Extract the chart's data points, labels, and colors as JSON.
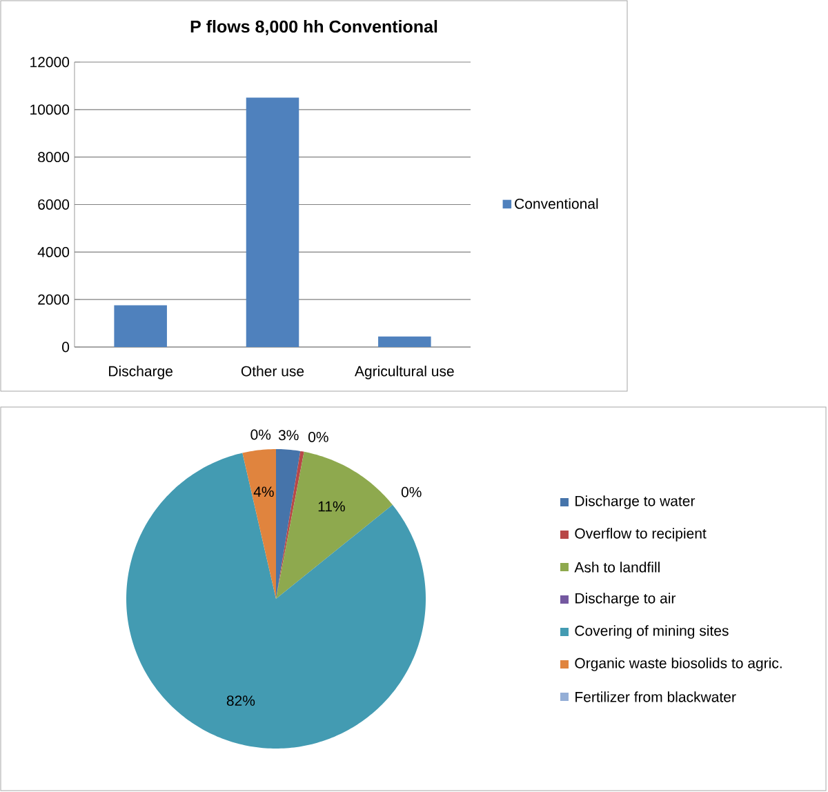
{
  "chart_data": [
    {
      "type": "bar",
      "title": "P flows 8,000 hh Conventional",
      "categories": [
        "Discharge",
        "Other use",
        "Agricultural use"
      ],
      "series": [
        {
          "name": "Conventional",
          "color": "#4f81bd",
          "values": [
            1760,
            10500,
            440
          ]
        }
      ],
      "ylim": [
        0,
        12000
      ],
      "yticks": [
        0,
        2000,
        4000,
        6000,
        8000,
        10000,
        12000
      ],
      "grid": "y",
      "legend": "right"
    },
    {
      "type": "pie",
      "categories": [
        "Discharge to water",
        "Overflow to recipient",
        "Ash to landfill",
        "Discharge to air",
        "Covering of mining sites",
        "Organic waste biosolids to agric.",
        "Fertilizer from blackwater"
      ],
      "values": [
        2.6,
        0.4,
        11.2,
        0,
        82.2,
        3.6,
        0
      ],
      "colors": [
        "#4674aa",
        "#b84848",
        "#8ea94e",
        "#7458a0",
        "#439bb2",
        "#e0843e",
        "#94aed6"
      ],
      "value_labels": [
        "3%",
        "0%",
        "11%",
        "0%",
        "82%",
        "4%",
        "0%"
      ],
      "legend": "right"
    }
  ]
}
